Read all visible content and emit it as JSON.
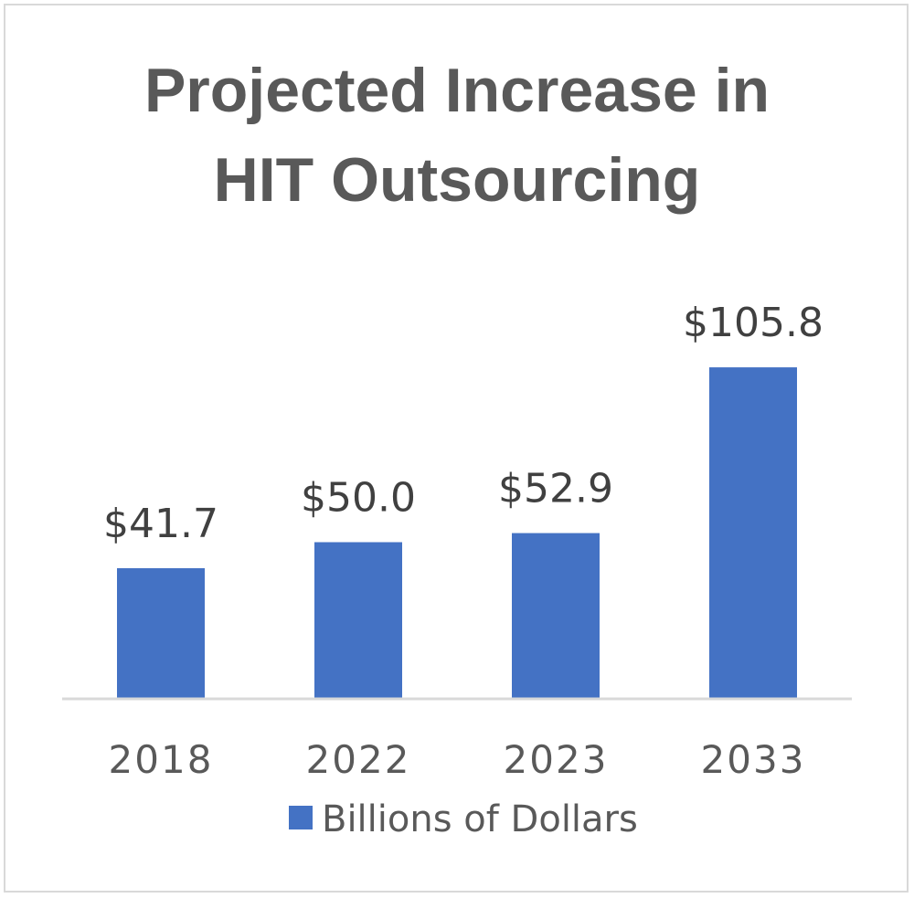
{
  "chart_data": {
    "type": "bar",
    "title_lines": [
      "Projected Increase in",
      "HIT Outsourcing"
    ],
    "categories": [
      "2018",
      "2022",
      "2023",
      "2033"
    ],
    "series": [
      {
        "name": "Billions of Dollars",
        "values": [
          41.7,
          50.0,
          52.9,
          105.8
        ],
        "color": "#4472c4"
      }
    ],
    "data_labels": [
      "$41.7",
      "$50.0",
      "$52.9",
      "$105.8"
    ],
    "ylim": [
      0,
      110
    ],
    "grid": false,
    "legend_position": "bottom",
    "xlabel": "",
    "ylabel": ""
  }
}
